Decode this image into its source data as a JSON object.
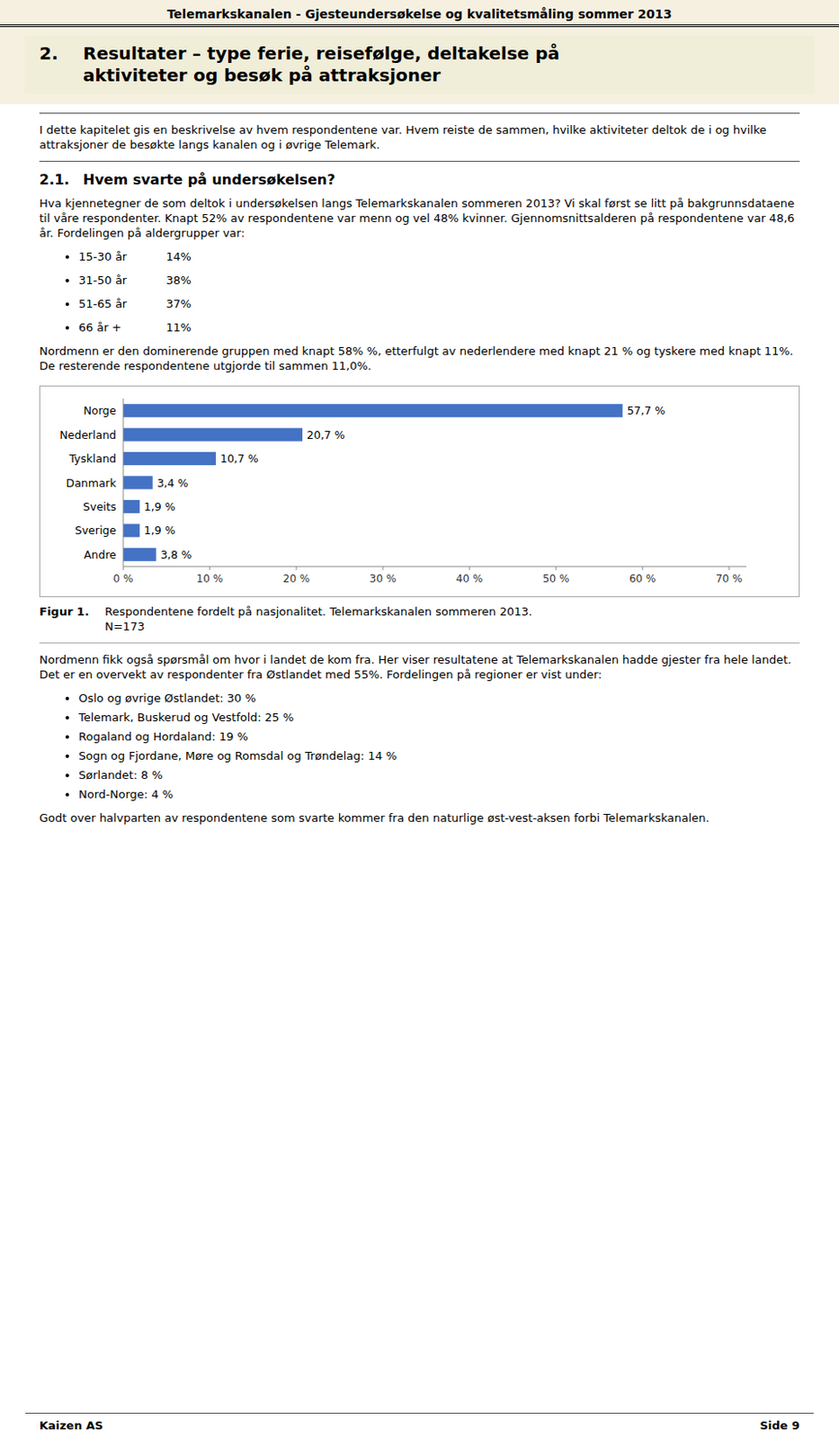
{
  "header": "Telemarkskanalen - Gjesteundersøkelse og kvalitetsmåling sommer 2013",
  "section_number": "2.",
  "section_title": [
    "Resultater – type ferie, reisefølge, deltakelse på",
    "aktiviteter og besøk på attraksjoner"
  ],
  "intro_text": "I dette kapitelet gis en beskrivelse av hvem respondentene var.  Hvem reiste de sammen, hvilke aktiviteter deltok de i og hvilke attraksjoner de besøkte langs kanalen og i øvrige Telemark.",
  "subsection": [
    "2.1.",
    "Hvem svarte på undersøkelsen?"
  ],
  "body_text1": "Hva kjennetegner de som deltok i undersøkelsen langs Telemarkskanalen sommeren 2013? Vi skal først se litt på bakgrunnsdataene til våre respondenter.  Knapt 52% av respondentene var menn og vel 48% kvinner.  Gjennomsnittsalderen på respondentene var 48,6 år.  Fordelingen på aldergrupper var:",
  "bullet_items": [
    [
      "15-30 år",
      "14%"
    ],
    [
      "31-50 år",
      "38%"
    ],
    [
      "51-65 år",
      "37%"
    ],
    [
      "66 år +",
      "11%"
    ]
  ],
  "body_text2": "Nordmenn er den dominerende gruppen med knapt 58% %, etterfulgt av nederlendere med knapt 21 % og tyskere med knapt 11%.  De resterende respondentene utgjorde til sammen 11,0%.",
  "chart_data": {
    "type": "bar",
    "orientation": "horizontal",
    "categories": [
      "Norge",
      "Nederland",
      "Tyskland",
      "Danmark",
      "Sveits",
      "Sverige",
      "Andre"
    ],
    "values": [
      57.7,
      20.7,
      10.7,
      3.4,
      1.9,
      1.9,
      3.8
    ],
    "value_labels": [
      "57,7 %",
      "20,7 %",
      "10,7 %",
      "3,4 %",
      "1,9 %",
      "1,9 %",
      "3,8 %"
    ],
    "color": "#4472C4",
    "xlim": [
      0,
      72
    ],
    "xticks": [
      {
        "value": 0,
        "label": "0 %"
      },
      {
        "value": 10,
        "label": "10 %"
      },
      {
        "value": 20,
        "label": "20 %"
      },
      {
        "value": 30,
        "label": "30 %"
      },
      {
        "value": 40,
        "label": "40 %"
      },
      {
        "value": 50,
        "label": "50 %"
      },
      {
        "value": 60,
        "label": "60 %"
      },
      {
        "value": 70,
        "label": "70 %"
      }
    ],
    "data_labels": true,
    "grid": false
  },
  "fig1_label": "Figur 1.",
  "fig1_caption": [
    "Respondentene fordelt på nasjonalitet. Telemarkskanalen sommeren 2013.",
    "N=173"
  ],
  "body_text3": "Nordmenn fikk også spørsmål om hvor i landet de kom fra. Her viser resultatene at Telemarkskanalen hadde gjester fra hele landet.  Det er en overvekt av respondenter fra Østlandet med 55%.   Fordelingen på regioner er vist under:",
  "bullet_items2": [
    "Oslo og øvrige Østlandet: 30 %",
    "Telemark, Buskerud og Vestfold: 25 %",
    "Rogaland og Hordaland: 19 %",
    "Sogn og Fjordane, Møre og Romsdal og Trøndelag: 14 %",
    "Sørlandet: 8 %",
    "Nord-Norge: 4 %"
  ],
  "body_text4": "Godt over halvparten av respondentene som svarte kommer fra den naturlige øst-vest-aksen forbi Telemarkskanalen.",
  "footer_left": "Kaizen AS",
  "footer_right": "Side 9"
}
